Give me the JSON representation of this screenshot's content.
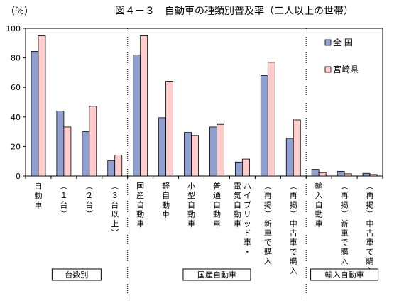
{
  "chart_data": {
    "type": "bar",
    "title": "図４－３　自動車の種類別普及率（二人以上の世帯）",
    "ylabel": "（％）",
    "ylim": [
      0,
      100
    ],
    "yticks": [
      0,
      20,
      40,
      60,
      80,
      100
    ],
    "grid": false,
    "legend_position": "top-right",
    "colors": {
      "全国": "#8FA0D0",
      "宮崎県": "#FFCCCC",
      "outline": "#000000"
    },
    "categories": [
      "自動車",
      "（１台）",
      "（２台）",
      "（３台以上）",
      "国産自動車",
      "軽自動車",
      "小型自動車",
      "普通自動車",
      "ハイブリッド車・電気自動車",
      "（再掲）新車で購入",
      "（再掲）中古車で購入",
      "輸入自動車",
      "（再掲）新車で購入",
      "（再掲）中古車で購入"
    ],
    "series": [
      {
        "name": "全 国",
        "values": [
          84.4,
          44.0,
          30.0,
          10.5,
          82.0,
          39.5,
          29.5,
          33.2,
          9.5,
          68.0,
          25.5,
          4.5,
          3.2,
          1.8
        ]
      },
      {
        "name": "宮崎県",
        "values": [
          95.0,
          33.2,
          47.2,
          14.2,
          95.0,
          64.2,
          27.5,
          35.0,
          11.5,
          77.0,
          38.0,
          2.3,
          1.5,
          1.0
        ]
      }
    ],
    "groups": [
      {
        "label": "台数別",
        "start": 0,
        "end": 3
      },
      {
        "label": "国産自動車",
        "start": 4,
        "end": 10
      },
      {
        "label": "輸入自動車",
        "start": 11,
        "end": 13
      }
    ]
  }
}
